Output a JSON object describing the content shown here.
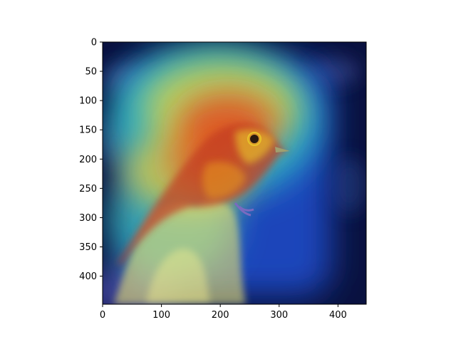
{
  "chart_data": {
    "type": "heatmap",
    "title": "",
    "xlabel": "",
    "ylabel": "",
    "xlim": [
      0,
      448
    ],
    "ylim": [
      448,
      0
    ],
    "x_ticks": [
      0,
      100,
      200,
      300,
      400
    ],
    "y_ticks": [
      0,
      50,
      100,
      150,
      200,
      250,
      300,
      350,
      400
    ],
    "colormap": "jet",
    "image_subject": "bird perched on a hand",
    "heat_regions": [
      {
        "label": "bird head",
        "cx": 285,
        "cy": 175,
        "intensity": 1.0
      },
      {
        "label": "bird breast",
        "cx": 260,
        "cy": 230,
        "intensity": 0.95
      },
      {
        "label": "upper region",
        "cx": 250,
        "cy": 120,
        "intensity": 0.8
      },
      {
        "label": "bird wing",
        "cx": 200,
        "cy": 230,
        "intensity": 0.75
      },
      {
        "label": "hand fingers",
        "cx": 190,
        "cy": 330,
        "intensity": 0.65
      },
      {
        "label": "left band",
        "cx": 110,
        "cy": 160,
        "intensity": 0.55
      },
      {
        "label": "right band",
        "cx": 360,
        "cy": 200,
        "intensity": 0.5
      },
      {
        "label": "lower palm",
        "cx": 150,
        "cy": 410,
        "intensity": 0.45
      }
    ]
  },
  "colors": {
    "background": "#0a1240",
    "low": "#0b2a8a",
    "mid": "#35d0c4",
    "high": "#e43a1e",
    "bird_red": "#c23a22",
    "bird_yellow": "#e8c22a",
    "skin": "#f0e06a"
  }
}
